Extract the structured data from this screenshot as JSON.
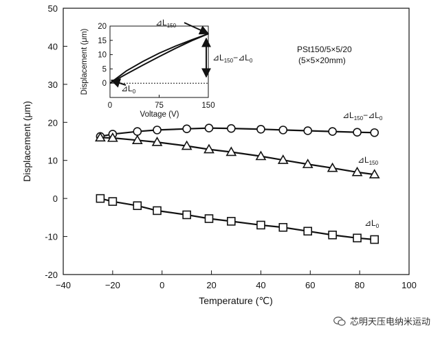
{
  "chart_data": {
    "type": "line",
    "xlabel": "Temperature (℃)",
    "ylabel": "Displacement (μm)",
    "xlim": [
      -40,
      100
    ],
    "ylim": [
      -20,
      50
    ],
    "xticks": [
      -40,
      -20,
      0,
      20,
      40,
      60,
      80,
      100
    ],
    "yticks": [
      -20,
      -10,
      0,
      10,
      20,
      30,
      40,
      50
    ],
    "x": [
      -25,
      -20,
      -10,
      -2,
      10,
      19,
      28,
      40,
      49,
      59,
      69,
      79,
      86
    ],
    "series": [
      {
        "name": "ΔL150−ΔL0",
        "marker": "circle",
        "values": [
          16.3,
          16.9,
          17.6,
          18.0,
          18.3,
          18.5,
          18.4,
          18.2,
          18.0,
          17.8,
          17.6,
          17.4,
          17.3
        ]
      },
      {
        "name": "ΔL150",
        "marker": "triangle",
        "values": [
          16.0,
          15.9,
          15.3,
          14.8,
          13.8,
          12.9,
          12.2,
          11.1,
          10.1,
          9.0,
          8.0,
          6.9,
          6.3
        ]
      },
      {
        "name": "ΔL0",
        "marker": "square",
        "values": [
          0.0,
          -0.8,
          -1.9,
          -3.2,
          -4.3,
          -5.3,
          -6.0,
          -7.0,
          -7.6,
          -8.6,
          -9.6,
          -10.4,
          -10.8
        ]
      }
    ],
    "labels": {
      "circle_series": [
        "⊿L",
        "150",
        "−⊿L",
        "0"
      ],
      "triangle_series": [
        "⊿L",
        "150"
      ],
      "square_series": [
        "⊿L",
        "0"
      ]
    },
    "product_label": "PSt150/5×5/20",
    "product_dims": "(5×5×20mm)",
    "inset": {
      "xlabel": "Voltage (V)",
      "ylabel": "Displacement (μm)",
      "xlim": [
        0,
        150
      ],
      "ylim": [
        -5,
        20
      ],
      "xticks": [
        0,
        75,
        150
      ],
      "yticks": [
        0,
        5,
        10,
        15,
        20
      ],
      "upper_curve": {
        "x": [
          0,
          25,
          50,
          75,
          100,
          125,
          150
        ],
        "y": [
          0,
          4.3,
          7.6,
          10.5,
          13.0,
          15.2,
          17.3
        ]
      },
      "lower_curve": {
        "x": [
          0,
          25,
          50,
          75,
          100,
          125,
          150
        ],
        "y": [
          0,
          3.2,
          6.3,
          9.3,
          12.2,
          14.9,
          17.3
        ]
      },
      "reference_level": 0,
      "annot_L150": [
        "⊿L",
        "150"
      ],
      "annot_L0": [
        "⊿L",
        "0"
      ],
      "annot_diff": [
        "⊿L",
        "150",
        "−⊿L",
        "0"
      ]
    }
  },
  "watermark": {
    "icon": "wechat-icon",
    "text": "芯明天压电纳米运动"
  }
}
